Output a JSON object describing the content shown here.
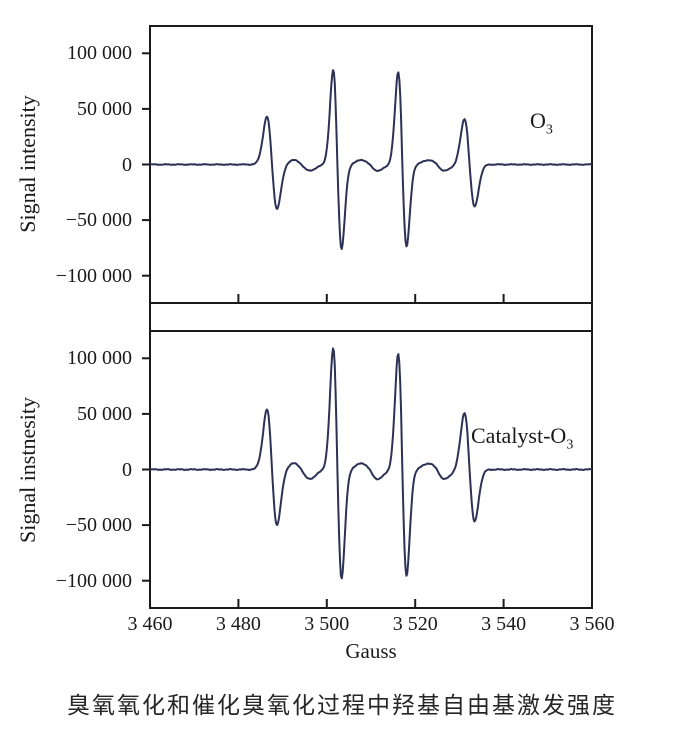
{
  "figure": {
    "caption": "臭氧氧化和催化臭氧化过程中羟基自由基激发强度"
  },
  "axes": {
    "x": {
      "label": "Gauss",
      "min": 3460,
      "max": 3560,
      "tick_values": [
        3460,
        3480,
        3500,
        3520,
        3540,
        3560
      ],
      "tick_labels": [
        "3 460",
        "3 480",
        "3 500",
        "3 520",
        "3 540",
        "3 560"
      ]
    },
    "y": {
      "min": -125000,
      "max": 125000,
      "tick_values": [
        100000,
        50000,
        0,
        -50000,
        -100000
      ],
      "tick_labels": [
        "100 000",
        "50 000",
        "0",
        "−50 000",
        "−100 000"
      ]
    }
  },
  "colors": {
    "line": "#2d3156",
    "axis": "#1a1a1a",
    "text": "#1a1a1a"
  },
  "chart_data": [
    {
      "type": "line",
      "name": "ozone-epr-spectrum",
      "ylabel": "Signal intensity",
      "xlabel": "Gauss",
      "annotation": {
        "base": "O",
        "sub": "3"
      },
      "xlim": [
        3460,
        3560
      ],
      "ylim": [
        -125000,
        125000
      ],
      "x_ticks": [
        3460,
        3480,
        3500,
        3520,
        3540,
        3560
      ],
      "y_ticks": [
        100000,
        50000,
        0,
        -50000,
        -100000
      ],
      "peaks": [
        {
          "center": 3487.6,
          "sigma": 1.15,
          "amp_pos": 43000,
          "amp_neg": 40000
        },
        {
          "center": 3502.4,
          "sigma": 0.95,
          "amp_pos": 85000,
          "amp_neg": 76000
        },
        {
          "center": 3517.1,
          "sigma": 0.95,
          "amp_pos": 83000,
          "amp_neg": 74000
        },
        {
          "center": 3532.3,
          "sigma": 1.15,
          "amp_pos": 41000,
          "amp_neg": 38000
        }
      ],
      "satellites": [
        {
          "center": 3494.3,
          "sigma": 1.8,
          "amp_pos": 4000,
          "amp_neg": 5500
        },
        {
          "center": 3509.7,
          "sigma": 1.8,
          "amp_pos": 4000,
          "amp_neg": 5500
        },
        {
          "center": 3524.9,
          "sigma": 1.8,
          "amp_pos": 4000,
          "amp_neg": 5500
        }
      ]
    },
    {
      "type": "line",
      "name": "catalyst-ozone-epr-spectrum",
      "ylabel": "Signal instnesity",
      "xlabel": "Gauss",
      "annotation": {
        "base": "Catalyst-O",
        "sub": "3"
      },
      "xlim": [
        3460,
        3560
      ],
      "ylim": [
        -125000,
        125000
      ],
      "x_ticks": [
        3460,
        3480,
        3500,
        3520,
        3540,
        3560
      ],
      "y_ticks": [
        100000,
        50000,
        0,
        -50000,
        -100000
      ],
      "peaks": [
        {
          "center": 3487.6,
          "sigma": 1.15,
          "amp_pos": 54000,
          "amp_neg": 50000
        },
        {
          "center": 3502.4,
          "sigma": 0.95,
          "amp_pos": 109000,
          "amp_neg": 98000
        },
        {
          "center": 3517.1,
          "sigma": 0.95,
          "amp_pos": 104000,
          "amp_neg": 96000
        },
        {
          "center": 3532.3,
          "sigma": 1.15,
          "amp_pos": 51000,
          "amp_neg": 47000
        }
      ],
      "satellites": [
        {
          "center": 3494.3,
          "sigma": 1.8,
          "amp_pos": 5500,
          "amp_neg": 8500
        },
        {
          "center": 3509.7,
          "sigma": 1.8,
          "amp_pos": 5500,
          "amp_neg": 8500
        },
        {
          "center": 3524.9,
          "sigma": 1.8,
          "amp_pos": 5500,
          "amp_neg": 8500
        }
      ]
    }
  ]
}
